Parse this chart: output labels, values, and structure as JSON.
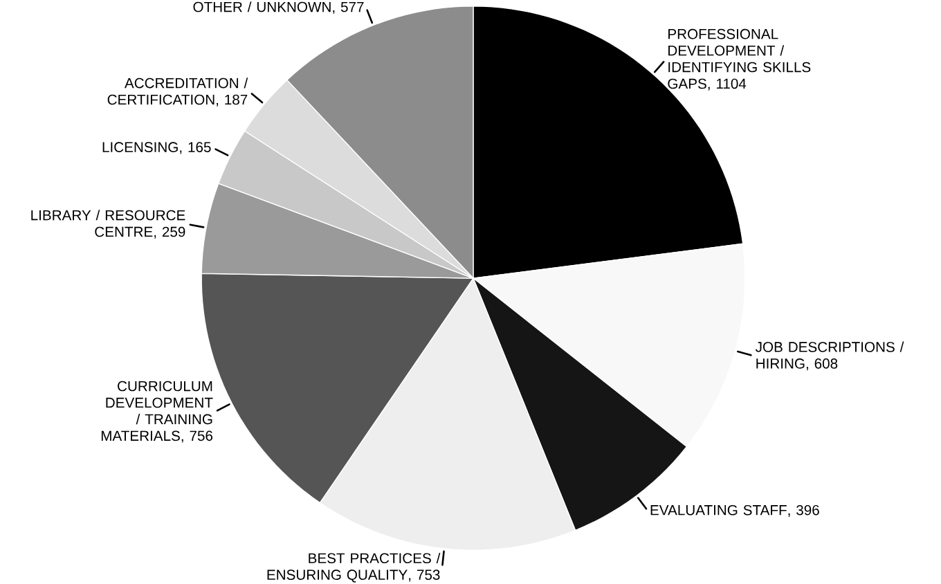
{
  "chart_data": {
    "type": "pie",
    "categories": [
      "PROFESSIONAL DEVELOPMENT / IDENTIFYING SKILLS GAPS",
      "JOB DESCRIPTIONS / HIRING",
      "EVALUATING STAFF",
      "BEST PRACTICES / ENSURING QUALITY",
      "CURRICULUM DEVELOPMENT / TRAINING MATERIALS",
      "LIBRARY / RESOURCE CENTRE",
      "LICENSING",
      "ACCREDITATION / CERTIFICATION",
      "OTHER / UNKNOWN"
    ],
    "values": [
      1104,
      608,
      396,
      753,
      756,
      259,
      165,
      187,
      577
    ],
    "value_labels": [
      ", 1104",
      ", 608",
      ", 396",
      ", 753",
      ", 756",
      ", 259",
      ", 165",
      ", 187",
      ", 577"
    ],
    "colors": [
      "#000000",
      "#f8f8f8",
      "#151515",
      "#eeeeee",
      "#555555",
      "#9a9a9a",
      "#c8c8c8",
      "#dcdcdc",
      "#8c8c8c"
    ]
  }
}
